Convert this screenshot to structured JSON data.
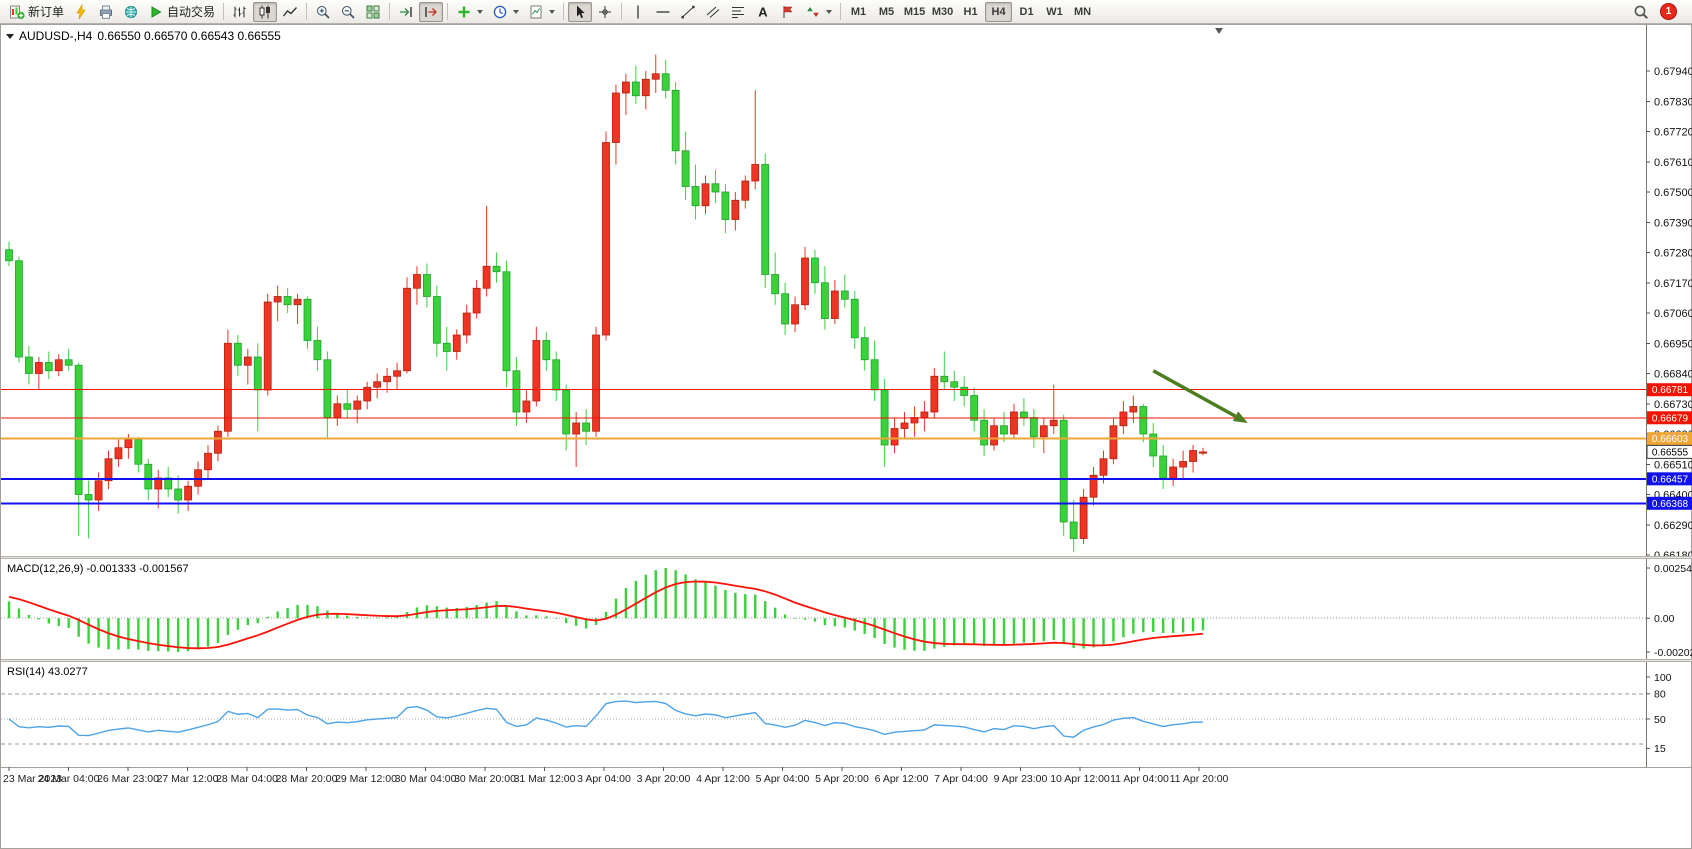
{
  "toolbar": {
    "new_order_label": "新订单",
    "auto_trading_label": "自动交易",
    "timeframes": [
      "M1",
      "M5",
      "M15",
      "M30",
      "H1",
      "H4",
      "D1",
      "W1",
      "MN"
    ],
    "active_timeframe": "H4",
    "notification_count": "1"
  },
  "chart": {
    "symbol_period": "AUDUSD-,H4",
    "ohlc": "0.66550 0.66570 0.66543 0.66555"
  },
  "chart_data": {
    "type": "candlestick",
    "symbol": "AUDUSD",
    "period": "H4",
    "colors": {
      "up": "#ee3524",
      "up_edge": "#b5200f",
      "down": "#3ad13a",
      "down_edge": "#1fa32a",
      "background": "#ffffff"
    },
    "y_axis": {
      "max": 0.6794,
      "min": 0.6618,
      "step": 0.0011
    },
    "y_ticks": [
      "0.67940",
      "0.67830",
      "0.67720",
      "0.67610",
      "0.67500",
      "0.67390",
      "0.67280",
      "0.67170",
      "0.67060",
      "0.66950",
      "0.66840",
      "0.66730",
      "0.66620",
      "0.66510",
      "0.66400",
      "0.66290",
      "0.66180"
    ],
    "x_labels": [
      "23 Mar 2023",
      "24 Mar 04:00",
      "26 Mar 23:00",
      "27 Mar 12:00",
      "28 Mar 04:00",
      "28 Mar 20:00",
      "29 Mar 12:00",
      "30 Mar 04:00",
      "30 Mar 20:00",
      "31 Mar 12:00",
      "3 Apr 04:00",
      "3 Apr 20:00",
      "4 Apr 12:00",
      "5 Apr 04:00",
      "5 Apr 20:00",
      "6 Apr 12:00",
      "7 Apr 04:00",
      "9 Apr 23:00",
      "10 Apr 12:00",
      "11 Apr 04:00",
      "11 Apr 20:00"
    ],
    "candles": [
      [
        0.6729,
        0.6732,
        0.6723,
        0.6725
      ],
      [
        0.6725,
        0.67265,
        0.6688,
        0.669
      ],
      [
        0.669,
        0.6694,
        0.668,
        0.6684
      ],
      [
        0.6684,
        0.669,
        0.6678,
        0.6688
      ],
      [
        0.6688,
        0.6692,
        0.6682,
        0.6685
      ],
      [
        0.6685,
        0.6691,
        0.6683,
        0.6689
      ],
      [
        0.6689,
        0.6693,
        0.6685,
        0.6687
      ],
      [
        0.6687,
        0.6688,
        0.6625,
        0.664
      ],
      [
        0.664,
        0.6645,
        0.6624,
        0.6638
      ],
      [
        0.6638,
        0.6648,
        0.6634,
        0.6645
      ],
      [
        0.6645,
        0.6656,
        0.6642,
        0.6653
      ],
      [
        0.6653,
        0.666,
        0.665,
        0.6657
      ],
      [
        0.6657,
        0.6662,
        0.6653,
        0.666
      ],
      [
        0.666,
        0.6661,
        0.6648,
        0.6651
      ],
      [
        0.6651,
        0.6653,
        0.6638,
        0.6642
      ],
      [
        0.6642,
        0.6649,
        0.6635,
        0.6646
      ],
      [
        0.6646,
        0.665,
        0.6639,
        0.6642
      ],
      [
        0.6642,
        0.6647,
        0.6633,
        0.6638
      ],
      [
        0.6638,
        0.6645,
        0.6634,
        0.6643
      ],
      [
        0.6643,
        0.6652,
        0.664,
        0.6649
      ],
      [
        0.6649,
        0.6658,
        0.6646,
        0.6655
      ],
      [
        0.6655,
        0.6665,
        0.6652,
        0.6663
      ],
      [
        0.6663,
        0.67,
        0.6661,
        0.6695
      ],
      [
        0.6695,
        0.6698,
        0.6683,
        0.6687
      ],
      [
        0.6687,
        0.6693,
        0.668,
        0.669
      ],
      [
        0.669,
        0.6695,
        0.6663,
        0.6678
      ],
      [
        0.6678,
        0.6713,
        0.6676,
        0.671
      ],
      [
        0.671,
        0.6716,
        0.6703,
        0.6712
      ],
      [
        0.6712,
        0.6715,
        0.6706,
        0.6709
      ],
      [
        0.6709,
        0.6713,
        0.6702,
        0.6711
      ],
      [
        0.6711,
        0.6712,
        0.6693,
        0.6696
      ],
      [
        0.6696,
        0.6701,
        0.6685,
        0.6689
      ],
      [
        0.6689,
        0.6692,
        0.666,
        0.6668
      ],
      [
        0.6668,
        0.6676,
        0.6665,
        0.6673
      ],
      [
        0.6673,
        0.6678,
        0.6668,
        0.6671
      ],
      [
        0.6671,
        0.6676,
        0.6666,
        0.6674
      ],
      [
        0.6674,
        0.6681,
        0.6671,
        0.6679
      ],
      [
        0.6679,
        0.6684,
        0.6675,
        0.6681
      ],
      [
        0.6681,
        0.6686,
        0.6677,
        0.6683
      ],
      [
        0.6683,
        0.6688,
        0.6678,
        0.6685
      ],
      [
        0.6685,
        0.6719,
        0.6684,
        0.6715
      ],
      [
        0.6715,
        0.6723,
        0.6709,
        0.672
      ],
      [
        0.672,
        0.6724,
        0.6708,
        0.6712
      ],
      [
        0.6712,
        0.6716,
        0.669,
        0.6695
      ],
      [
        0.6695,
        0.6701,
        0.6685,
        0.6692
      ],
      [
        0.6692,
        0.67,
        0.6689,
        0.6698
      ],
      [
        0.6698,
        0.6709,
        0.6695,
        0.6706
      ],
      [
        0.6706,
        0.6718,
        0.6704,
        0.6715
      ],
      [
        0.6715,
        0.6745,
        0.6712,
        0.6723
      ],
      [
        0.6723,
        0.6728,
        0.6717,
        0.6721
      ],
      [
        0.6721,
        0.6725,
        0.6679,
        0.6685
      ],
      [
        0.6685,
        0.669,
        0.6665,
        0.667
      ],
      [
        0.667,
        0.6678,
        0.6666,
        0.6674
      ],
      [
        0.6674,
        0.6701,
        0.6672,
        0.6696
      ],
      [
        0.6696,
        0.6699,
        0.6685,
        0.6689
      ],
      [
        0.6689,
        0.6692,
        0.6674,
        0.6678
      ],
      [
        0.6678,
        0.668,
        0.6656,
        0.6662
      ],
      [
        0.6662,
        0.667,
        0.665,
        0.6666
      ],
      [
        0.6666,
        0.6671,
        0.6658,
        0.6663
      ],
      [
        0.6663,
        0.6701,
        0.6661,
        0.6698
      ],
      [
        0.6698,
        0.6772,
        0.6696,
        0.6768
      ],
      [
        0.6768,
        0.6789,
        0.676,
        0.6786
      ],
      [
        0.6786,
        0.6793,
        0.6778,
        0.679
      ],
      [
        0.679,
        0.6796,
        0.6782,
        0.6785
      ],
      [
        0.6785,
        0.6794,
        0.678,
        0.6791
      ],
      [
        0.6791,
        0.68,
        0.6786,
        0.6793
      ],
      [
        0.6793,
        0.6798,
        0.6784,
        0.6787
      ],
      [
        0.6787,
        0.679,
        0.676,
        0.6765
      ],
      [
        0.6765,
        0.6772,
        0.6747,
        0.6752
      ],
      [
        0.6752,
        0.676,
        0.674,
        0.6745
      ],
      [
        0.6745,
        0.6756,
        0.6742,
        0.6753
      ],
      [
        0.6753,
        0.6758,
        0.6746,
        0.675
      ],
      [
        0.675,
        0.6753,
        0.6735,
        0.674
      ],
      [
        0.674,
        0.675,
        0.6736,
        0.6747
      ],
      [
        0.6747,
        0.6756,
        0.6744,
        0.6754
      ],
      [
        0.6754,
        0.6787,
        0.6751,
        0.676
      ],
      [
        0.676,
        0.6764,
        0.6715,
        0.672
      ],
      [
        0.672,
        0.6728,
        0.6709,
        0.6713
      ],
      [
        0.6713,
        0.6717,
        0.6698,
        0.6702
      ],
      [
        0.6702,
        0.6712,
        0.6699,
        0.6709
      ],
      [
        0.6709,
        0.673,
        0.6707,
        0.6726
      ],
      [
        0.6726,
        0.6729,
        0.6713,
        0.6717
      ],
      [
        0.6717,
        0.6723,
        0.67,
        0.6704
      ],
      [
        0.6704,
        0.6718,
        0.6702,
        0.6714
      ],
      [
        0.6714,
        0.672,
        0.6708,
        0.6711
      ],
      [
        0.6711,
        0.6714,
        0.6693,
        0.6697
      ],
      [
        0.6697,
        0.6701,
        0.6685,
        0.6689
      ],
      [
        0.6689,
        0.6696,
        0.6674,
        0.6678
      ],
      [
        0.6678,
        0.6682,
        0.665,
        0.6658
      ],
      [
        0.6658,
        0.6668,
        0.6655,
        0.6664
      ],
      [
        0.6664,
        0.667,
        0.666,
        0.6666
      ],
      [
        0.6666,
        0.6672,
        0.6661,
        0.6668
      ],
      [
        0.6668,
        0.6674,
        0.6663,
        0.667
      ],
      [
        0.667,
        0.6686,
        0.6668,
        0.6683
      ],
      [
        0.6683,
        0.6692,
        0.6678,
        0.6681
      ],
      [
        0.6681,
        0.6685,
        0.6674,
        0.6679
      ],
      [
        0.6679,
        0.6683,
        0.6672,
        0.6676
      ],
      [
        0.6676,
        0.6679,
        0.6663,
        0.6667
      ],
      [
        0.6667,
        0.6671,
        0.6654,
        0.6658
      ],
      [
        0.6658,
        0.6668,
        0.6656,
        0.6665
      ],
      [
        0.6665,
        0.667,
        0.6659,
        0.6662
      ],
      [
        0.6662,
        0.6673,
        0.666,
        0.667
      ],
      [
        0.667,
        0.6675,
        0.6665,
        0.6668
      ],
      [
        0.6668,
        0.6671,
        0.6657,
        0.6661
      ],
      [
        0.6661,
        0.6668,
        0.6655,
        0.6665
      ],
      [
        0.6665,
        0.668,
        0.6662,
        0.6667
      ],
      [
        0.6667,
        0.6669,
        0.6625,
        0.663
      ],
      [
        0.663,
        0.6638,
        0.6619,
        0.6624
      ],
      [
        0.6624,
        0.6642,
        0.6622,
        0.6639
      ],
      [
        0.6639,
        0.665,
        0.6636,
        0.6647
      ],
      [
        0.6647,
        0.6656,
        0.6644,
        0.6653
      ],
      [
        0.6653,
        0.6668,
        0.6651,
        0.6665
      ],
      [
        0.6665,
        0.6674,
        0.6662,
        0.667
      ],
      [
        0.667,
        0.6676,
        0.6666,
        0.6672
      ],
      [
        0.6672,
        0.6673,
        0.6659,
        0.6662
      ],
      [
        0.6662,
        0.6666,
        0.665,
        0.6654
      ],
      [
        0.6654,
        0.6658,
        0.6642,
        0.6646
      ],
      [
        0.6646,
        0.6653,
        0.6643,
        0.665
      ],
      [
        0.665,
        0.6656,
        0.6646,
        0.6652
      ],
      [
        0.6652,
        0.6658,
        0.6648,
        0.6656
      ],
      [
        0.6655,
        0.6657,
        0.66543,
        0.66555
      ]
    ],
    "levels": [
      {
        "price": 0.66781,
        "label": "0.66781",
        "color": "#f21300",
        "width": 1
      },
      {
        "price": 0.66679,
        "label": "0.66679",
        "color": "#f21300",
        "width": 1
      },
      {
        "price": 0.66603,
        "label": "0.66603",
        "color": "#efa635",
        "width": 2
      },
      {
        "price": 0.66457,
        "label": "0.66457",
        "color": "#1111ee",
        "width": 2
      },
      {
        "price": 0.66368,
        "label": "0.66368",
        "color": "#1111ee",
        "width": 2
      }
    ],
    "current_price": 0.66555,
    "current_price_label": "0.66555",
    "annotation": {
      "type": "arrow",
      "color": "#4c7d1f",
      "from": {
        "index": 115,
        "price": 0.6685
      },
      "to": {
        "index": 124.5,
        "price": 0.6666
      }
    },
    "indicators": {
      "macd": {
        "label": "MACD(12,26,9)",
        "values": "-0.001333 -0.001567",
        "axis": [
          "0.002545",
          "0.00",
          "-0.002026"
        ],
        "histogram_color": "#3ad13a",
        "signal_color": "#ff1207"
      },
      "rsi": {
        "label": "RSI(14)",
        "value": "43.0277",
        "axis": [
          "100",
          "80",
          "50",
          "15"
        ],
        "levels": [
          80,
          50,
          20
        ],
        "line_color": "#4da3e8"
      }
    }
  }
}
